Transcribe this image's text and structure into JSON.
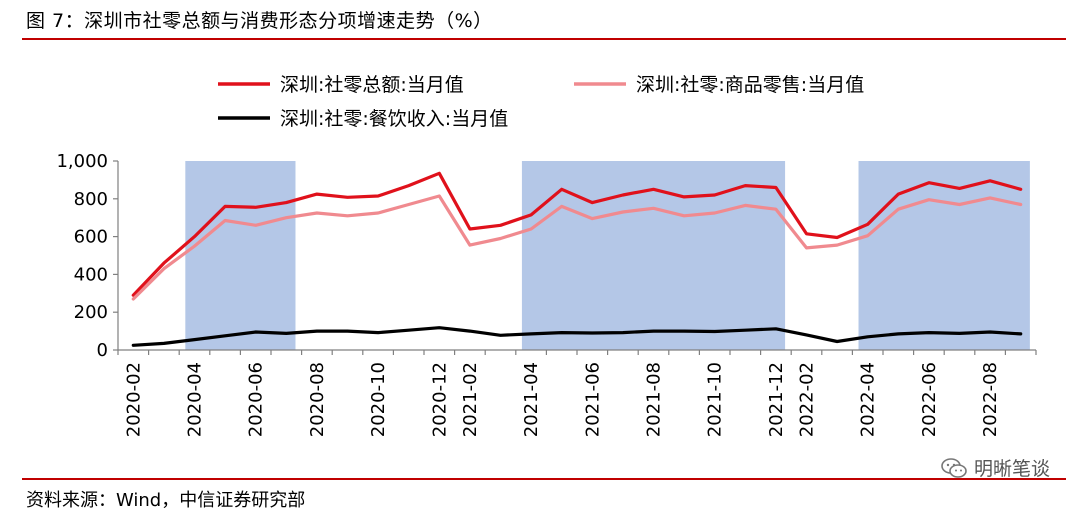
{
  "title": "图 7：深圳市社零总额与消费形态分项增速走势（%）",
  "source": "资料来源：Wind，中信证券研究部",
  "watermark": "明晰笔谈",
  "chart_data": {
    "type": "line",
    "x": [
      "2020-02",
      "2020-03",
      "2020-04",
      "2020-05",
      "2020-06",
      "2020-07",
      "2020-08",
      "2020-09",
      "2020-10",
      "2020-11",
      "2020-12",
      "2021-02",
      "2021-03",
      "2021-04",
      "2021-05",
      "2021-06",
      "2021-07",
      "2021-08",
      "2021-09",
      "2021-10",
      "2021-11",
      "2021-12",
      "2022-02",
      "2022-03",
      "2022-04",
      "2022-05",
      "2022-06",
      "2022-07",
      "2022-08",
      "2022-09"
    ],
    "xticks": [
      "2020-02",
      "2020-04",
      "2020-06",
      "2020-08",
      "2020-10",
      "2020-12",
      "2021-02",
      "2021-04",
      "2021-06",
      "2021-08",
      "2021-10",
      "2021-12",
      "2022-02",
      "2022-04",
      "2022-06",
      "2022-08"
    ],
    "ylim": [
      0,
      1000
    ],
    "yticks": [
      0,
      200,
      400,
      600,
      800,
      1000
    ],
    "ytick_labels": [
      "0",
      "200",
      "400",
      "600",
      "800",
      "1,000"
    ],
    "shaded_ranges": [
      [
        "2020-04",
        "2020-07"
      ],
      [
        "2021-04",
        "2021-12"
      ],
      [
        "2022-04",
        "2022-09"
      ]
    ],
    "shade_color": "#b4c7e7",
    "legend_position": "top",
    "series": [
      {
        "name": "深圳:社零总额:当月值",
        "color": "#e0111b",
        "values": [
          290,
          460,
          600,
          760,
          755,
          780,
          825,
          808,
          815,
          870,
          935,
          640,
          660,
          715,
          850,
          780,
          820,
          850,
          810,
          820,
          870,
          860,
          615,
          595,
          665,
          825,
          885,
          855,
          895,
          850
        ]
      },
      {
        "name": "深圳:社零:商品零售:当月值",
        "color": "#f08a8f",
        "values": [
          270,
          430,
          550,
          685,
          660,
          700,
          725,
          710,
          725,
          770,
          815,
          555,
          590,
          640,
          760,
          695,
          730,
          750,
          710,
          725,
          765,
          745,
          540,
          555,
          605,
          745,
          795,
          770,
          805,
          770
        ]
      },
      {
        "name": "深圳:社零:餐饮收入:当月值",
        "color": "#000000",
        "values": [
          25,
          35,
          55,
          75,
          95,
          88,
          100,
          100,
          92,
          105,
          118,
          100,
          78,
          85,
          92,
          90,
          92,
          100,
          100,
          98,
          105,
          112,
          80,
          45,
          70,
          85,
          92,
          88,
          95,
          85
        ]
      }
    ]
  }
}
